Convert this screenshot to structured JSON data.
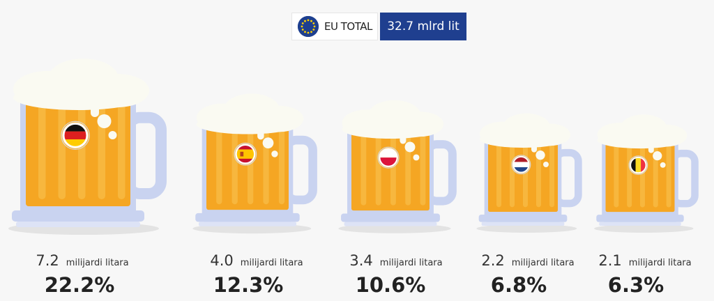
{
  "header": {
    "eu_label": "EU TOTAL",
    "total": "32.7 mlrd lit"
  },
  "chart_data": {
    "type": "bar",
    "categories": [
      "Germany",
      "Spain",
      "Poland",
      "Netherlands",
      "Belgium"
    ],
    "values": [
      7.2,
      4.0,
      3.4,
      2.2,
      2.1
    ],
    "value_labels": [
      "7.2",
      "4.0",
      "3.4",
      "2.2",
      "2.1"
    ],
    "unit": "milijardi litara",
    "shares": [
      "22.2%",
      "12.3%",
      "10.6%",
      "6.8%",
      "6.3%"
    ]
  },
  "colors": {
    "beer": "#f5a623",
    "beer_stripe": "#f7bb45",
    "glass": "#c9d3f0",
    "foam": "#fafaf2",
    "header_blue": "#1f3f8f"
  },
  "flags": [
    "germany-flag",
    "spain-flag",
    "poland-flag",
    "netherlands-flag",
    "belgium-flag"
  ]
}
